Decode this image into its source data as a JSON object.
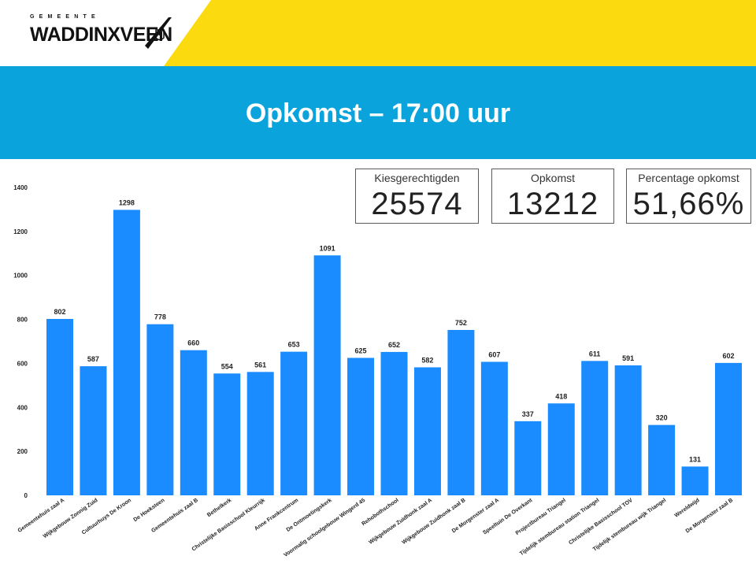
{
  "header": {
    "logo_small": "GEMEENTE",
    "logo_main": "WADDINXVEEN",
    "colors": {
      "yellow": "#fcda10",
      "blue": "#0aa3db"
    }
  },
  "title": "Opkomst – 17:00 uur",
  "kpis": [
    {
      "label": "Kiesgerechtigden",
      "value": "25574"
    },
    {
      "label": "Opkomst",
      "value": "13212"
    },
    {
      "label": "Percentage opkomst",
      "value": "51,66%"
    }
  ],
  "chart_data": {
    "type": "bar",
    "bar_color": "#1a8cff",
    "ylim": [
      0,
      1400
    ],
    "yticks": [
      0,
      200,
      400,
      600,
      800,
      1000,
      1200,
      1400
    ],
    "categories": [
      "Gemeentehuis zaal A",
      "Wijkgebouw Zonnig Zuid",
      "Cultuurhuys De Kroon",
      "De Hoeksteen",
      "Gemeentehuis zaal B",
      "Bethelkerk",
      "Christelijke Basisschool Kleurrijk",
      "Anne Frankcentrum",
      "De Ontmoetingskerk",
      "Voormalig schoolgebouw Wingerd 45",
      "Rehobothschool",
      "Wijkgebouw Zuidhonk zaal A",
      "Wijkgebouw Zuidhonk zaal B",
      "De Morgenster zaal A",
      "Speeltuin De Overkant",
      "Projectbureau Triangel",
      "Tijdelijk stembureau station Triangel",
      "Christelijke Basisschool TOV",
      "Tijdelijk stembureau wijk Triangel",
      "Wereldwijd",
      "De Morgenster zaal B"
    ],
    "values": [
      802,
      587,
      1298,
      778,
      660,
      554,
      561,
      653,
      1091,
      625,
      652,
      582,
      752,
      607,
      337,
      418,
      611,
      591,
      320,
      131,
      602
    ]
  }
}
